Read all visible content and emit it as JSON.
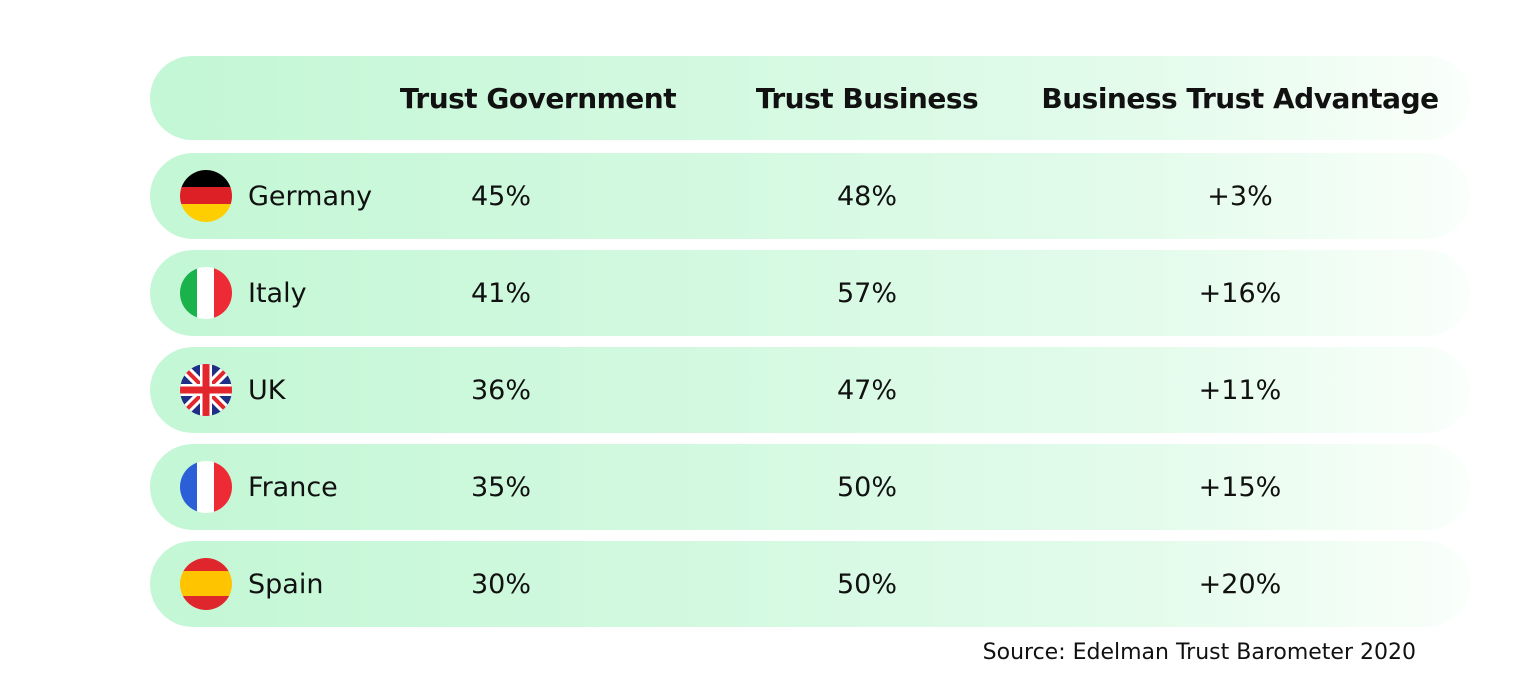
{
  "chart_data": {
    "type": "table",
    "columns": [
      "",
      "Trust Government",
      "Trust Business",
      "Business Trust Advantage"
    ],
    "rows": [
      {
        "country": "Germany",
        "flag": "germany-flag-icon",
        "trust_government": "45%",
        "trust_business": "48%",
        "advantage": "+3%"
      },
      {
        "country": "Italy",
        "flag": "italy-flag-icon",
        "trust_government": "41%",
        "trust_business": "57%",
        "advantage": "+16%"
      },
      {
        "country": "UK",
        "flag": "uk-flag-icon",
        "trust_government": "36%",
        "trust_business": "47%",
        "advantage": "+11%"
      },
      {
        "country": "France",
        "flag": "france-flag-icon",
        "trust_government": "35%",
        "trust_business": "50%",
        "advantage": "+15%"
      },
      {
        "country": "Spain",
        "flag": "spain-flag-icon",
        "trust_government": "30%",
        "trust_business": "50%",
        "advantage": "+20%"
      }
    ],
    "source": "Source: Edelman Trust Barometer 2020"
  },
  "colors": {
    "row_start": "#c3f7d5",
    "row_end": "#fafffb",
    "text": "#111111"
  }
}
